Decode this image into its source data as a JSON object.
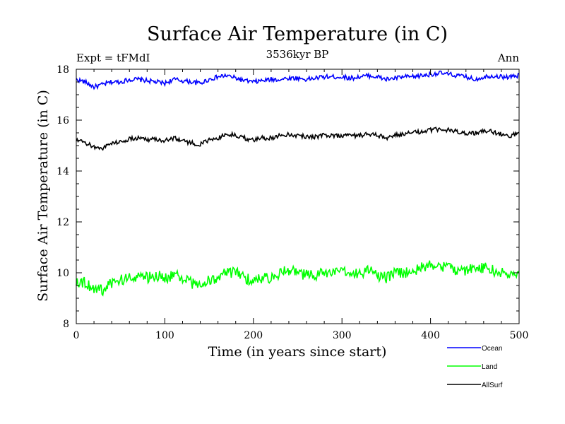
{
  "chart_data": {
    "type": "line",
    "title": "Surface Air Temperature (in C)",
    "subtitle": "3536kyr BP",
    "left_label": "Expt = tFMdI",
    "right_label": "Ann",
    "xlabel": "Time (in years since start)",
    "ylabel": "Surface Air Temperature (in C)",
    "xlim": [
      0,
      500
    ],
    "ylim": [
      8,
      18
    ],
    "xticks": [
      0,
      100,
      200,
      300,
      400,
      500
    ],
    "yticks": [
      8,
      10,
      12,
      14,
      16,
      18
    ],
    "grid": false,
    "legend_position": "bottom-right",
    "x_step": 10,
    "series": [
      {
        "name": "Ocean",
        "color": "#0000ff",
        "values": [
          17.6,
          17.5,
          17.3,
          17.4,
          17.5,
          17.5,
          17.6,
          17.6,
          17.55,
          17.5,
          17.45,
          17.6,
          17.55,
          17.5,
          17.45,
          17.6,
          17.7,
          17.75,
          17.65,
          17.55,
          17.5,
          17.55,
          17.6,
          17.6,
          17.65,
          17.65,
          17.6,
          17.65,
          17.7,
          17.7,
          17.7,
          17.65,
          17.7,
          17.75,
          17.7,
          17.6,
          17.65,
          17.7,
          17.7,
          17.75,
          17.8,
          17.85,
          17.8,
          17.75,
          17.7,
          17.6,
          17.7,
          17.75,
          17.7,
          17.7,
          17.75
        ]
      },
      {
        "name": "Land",
        "color": "#00ff00",
        "values": [
          9.7,
          9.6,
          9.4,
          9.3,
          9.6,
          9.7,
          9.8,
          9.9,
          9.8,
          9.9,
          9.8,
          9.9,
          9.8,
          9.6,
          9.5,
          9.7,
          9.8,
          10.0,
          10.0,
          9.8,
          9.7,
          9.8,
          9.8,
          10.0,
          10.1,
          10.0,
          9.9,
          9.9,
          10.0,
          10.0,
          10.0,
          10.0,
          10.0,
          10.1,
          9.9,
          9.8,
          10.0,
          10.0,
          10.1,
          10.2,
          10.3,
          10.3,
          10.2,
          10.1,
          10.1,
          10.2,
          10.2,
          10.1,
          10.0,
          9.9,
          10.0
        ]
      },
      {
        "name": "AllSurf",
        "color": "#000000",
        "values": [
          15.2,
          15.1,
          14.95,
          14.9,
          15.1,
          15.15,
          15.25,
          15.3,
          15.25,
          15.25,
          15.2,
          15.3,
          15.2,
          15.1,
          15.05,
          15.2,
          15.3,
          15.45,
          15.4,
          15.3,
          15.2,
          15.3,
          15.3,
          15.4,
          15.45,
          15.4,
          15.35,
          15.35,
          15.4,
          15.4,
          15.4,
          15.4,
          15.4,
          15.45,
          15.4,
          15.3,
          15.4,
          15.45,
          15.5,
          15.55,
          15.6,
          15.65,
          15.6,
          15.55,
          15.5,
          15.5,
          15.55,
          15.55,
          15.45,
          15.4,
          15.5
        ]
      }
    ]
  }
}
